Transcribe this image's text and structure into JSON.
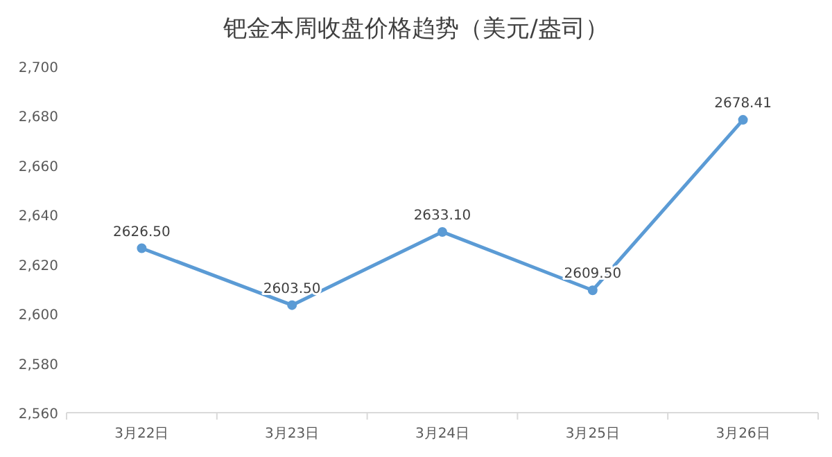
{
  "chart_data": {
    "type": "line",
    "title": "钯金本周收盘价格趋势（美元/盎司）",
    "categories": [
      "3月22日",
      "3月23日",
      "3月24日",
      "3月25日",
      "3月26日"
    ],
    "series": [
      {
        "color": "#5b9bd5",
        "values": [
          2626.5,
          2603.5,
          2633.1,
          2609.5,
          2678.41
        ]
      }
    ],
    "ylim": [
      2560,
      2700
    ],
    "yticks": [
      {
        "value": 2560,
        "label": "2,560"
      },
      {
        "value": 2580,
        "label": "2,580"
      },
      {
        "value": 2600,
        "label": "2,600"
      },
      {
        "value": 2620,
        "label": "2,620"
      },
      {
        "value": 2640,
        "label": "2,640"
      },
      {
        "value": 2660,
        "label": "2,660"
      },
      {
        "value": 2680,
        "label": "2,680"
      },
      {
        "value": 2700,
        "label": "2,700"
      }
    ],
    "value_labels": [
      [
        "2626.50",
        "2603.50",
        "2633.10",
        "2609.50",
        "2678.41"
      ]
    ],
    "marker": "circle",
    "line_style": "solid",
    "grid": false
  }
}
